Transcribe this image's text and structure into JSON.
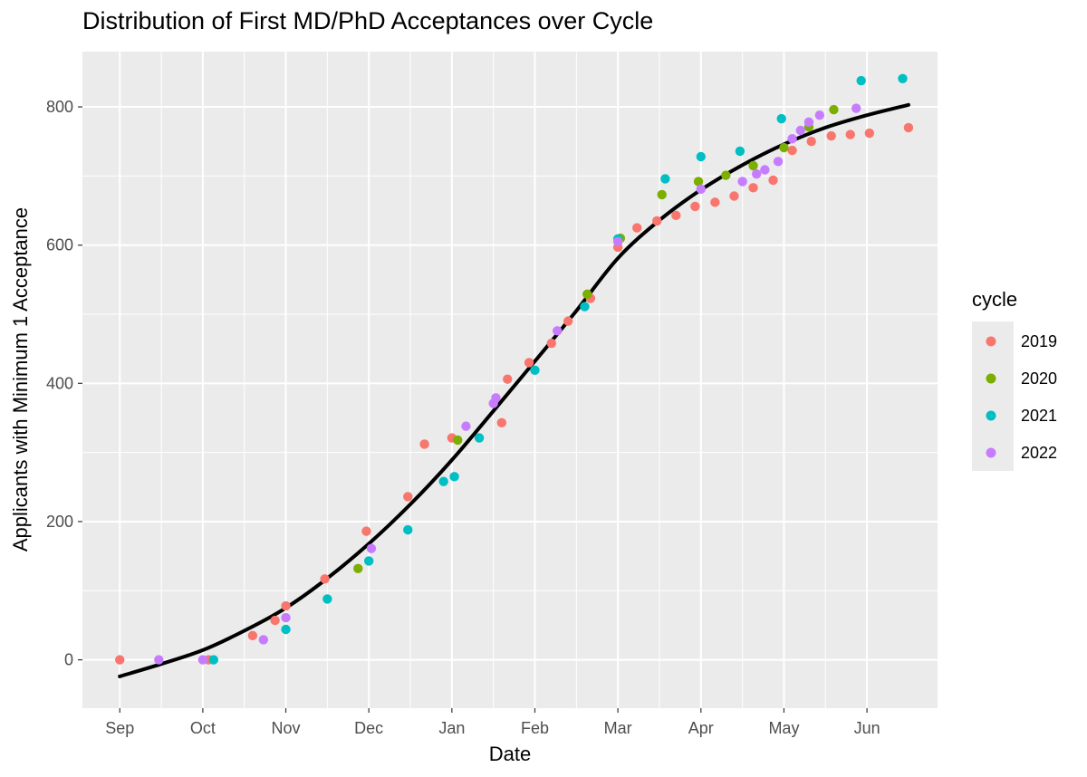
{
  "chart_data": {
    "type": "scatter",
    "title": "Distribution of First MD/PhD Acceptances over Cycle",
    "xlabel": "Date",
    "ylabel": "Applicants with Minimum 1 Acceptance",
    "x_unit": "months from Sep 1",
    "x_ticks": [
      "Sep",
      "Oct",
      "Nov",
      "Dec",
      "Jan",
      "Feb",
      "Mar",
      "Apr",
      "May",
      "Jun"
    ],
    "xlim": [
      -0.45,
      9.85
    ],
    "y_ticks": [
      0,
      200,
      400,
      600,
      800
    ],
    "ylim": [
      -70,
      880
    ],
    "grid": true,
    "legend": {
      "title": "cycle",
      "position": "right"
    },
    "series": [
      {
        "name": "2019",
        "color": "#F8766D",
        "points": [
          [
            0.0,
            0
          ],
          [
            1.07,
            0
          ],
          [
            1.6,
            35
          ],
          [
            1.87,
            57
          ],
          [
            2.0,
            78
          ],
          [
            2.47,
            117
          ],
          [
            2.97,
            186
          ],
          [
            3.47,
            236
          ],
          [
            3.67,
            312
          ],
          [
            4.0,
            321
          ],
          [
            4.6,
            343
          ],
          [
            4.67,
            406
          ],
          [
            4.93,
            430
          ],
          [
            5.2,
            458
          ],
          [
            5.4,
            490
          ],
          [
            5.67,
            523
          ],
          [
            6.0,
            597
          ],
          [
            6.23,
            625
          ],
          [
            6.47,
            635
          ],
          [
            6.7,
            643
          ],
          [
            6.93,
            656
          ],
          [
            7.17,
            662
          ],
          [
            7.4,
            671
          ],
          [
            7.63,
            683
          ],
          [
            7.87,
            694
          ],
          [
            8.1,
            737
          ],
          [
            8.33,
            750
          ],
          [
            8.57,
            758
          ],
          [
            8.8,
            760
          ],
          [
            9.03,
            762
          ],
          [
            9.5,
            770
          ]
        ]
      },
      {
        "name": "2020",
        "color": "#7CAE00",
        "points": [
          [
            2.87,
            132
          ],
          [
            4.07,
            318
          ],
          [
            5.63,
            529
          ],
          [
            6.03,
            610
          ],
          [
            6.53,
            673
          ],
          [
            6.97,
            692
          ],
          [
            7.3,
            701
          ],
          [
            7.63,
            715
          ],
          [
            8.0,
            741
          ],
          [
            8.3,
            771
          ],
          [
            8.6,
            796
          ]
        ]
      },
      {
        "name": "2021",
        "color": "#00BFC4",
        "points": [
          [
            1.13,
            0
          ],
          [
            2.0,
            44
          ],
          [
            2.5,
            88
          ],
          [
            3.0,
            143
          ],
          [
            3.47,
            188
          ],
          [
            3.9,
            258
          ],
          [
            4.03,
            265
          ],
          [
            4.33,
            321
          ],
          [
            5.0,
            419
          ],
          [
            5.6,
            511
          ],
          [
            6.0,
            609
          ],
          [
            6.57,
            696
          ],
          [
            7.0,
            728
          ],
          [
            7.47,
            736
          ],
          [
            7.97,
            783
          ],
          [
            8.93,
            838
          ],
          [
            9.43,
            841
          ]
        ]
      },
      {
        "name": "2022",
        "color": "#C77CFF",
        "points": [
          [
            0.47,
            0
          ],
          [
            1.0,
            0
          ],
          [
            1.73,
            29
          ],
          [
            2.0,
            61
          ],
          [
            3.03,
            161
          ],
          [
            4.17,
            338
          ],
          [
            4.5,
            371
          ],
          [
            4.53,
            379
          ],
          [
            5.27,
            476
          ],
          [
            6.0,
            605
          ],
          [
            7.0,
            681
          ],
          [
            7.5,
            692
          ],
          [
            7.67,
            703
          ],
          [
            7.77,
            709
          ],
          [
            7.93,
            721
          ],
          [
            8.1,
            754
          ],
          [
            8.2,
            766
          ],
          [
            8.3,
            778
          ],
          [
            8.43,
            788
          ],
          [
            8.87,
            798
          ]
        ]
      }
    ],
    "fit_line": {
      "color": "#000000",
      "points": [
        [
          0,
          -24
        ],
        [
          0.5,
          -6
        ],
        [
          1,
          14
        ],
        [
          1.5,
          42
        ],
        [
          2,
          75
        ],
        [
          2.5,
          118
        ],
        [
          3,
          168
        ],
        [
          3.5,
          225
        ],
        [
          4,
          289
        ],
        [
          4.5,
          360
        ],
        [
          5,
          432
        ],
        [
          5.5,
          505
        ],
        [
          6,
          581
        ],
        [
          6.5,
          636
        ],
        [
          7,
          680
        ],
        [
          7.5,
          716
        ],
        [
          8,
          746
        ],
        [
          8.5,
          770
        ],
        [
          9,
          788
        ],
        [
          9.5,
          803
        ]
      ]
    }
  }
}
